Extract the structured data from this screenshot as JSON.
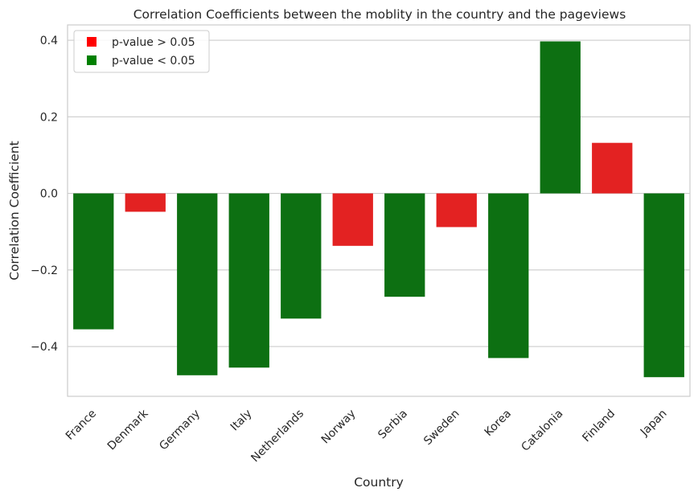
{
  "chart_data": {
    "type": "bar",
    "title": "Correlation Coefficients between the moblity in the country and the pageviews",
    "xlabel": "Country",
    "ylabel": "Correlation Coefficient",
    "ylim": [
      -0.53,
      0.44
    ],
    "yticks": [
      -0.4,
      -0.2,
      0.0,
      0.2,
      0.4
    ],
    "ytick_labels": [
      "−0.4",
      "−0.2",
      "0.0",
      "0.2",
      "0.4"
    ],
    "grid": true,
    "legend_position": "top-left",
    "categories": [
      "France",
      "Denmark",
      "Germany",
      "Italy",
      "Netherlands",
      "Norway",
      "Serbia",
      "Sweden",
      "Korea",
      "Catalonia",
      "Finland",
      "Japan"
    ],
    "values": [
      -0.355,
      -0.048,
      -0.475,
      -0.455,
      -0.327,
      -0.137,
      -0.27,
      -0.088,
      -0.43,
      0.397,
      0.132,
      -0.48
    ],
    "significance": [
      "sig",
      "nsig",
      "sig",
      "sig",
      "sig",
      "nsig",
      "sig",
      "nsig",
      "sig",
      "sig",
      "nsig",
      "sig"
    ],
    "legend": [
      {
        "label": "p-value > 0.05",
        "key": "nsig",
        "color": "#ff0000"
      },
      {
        "label": "p-value < 0.05",
        "key": "sig",
        "color": "#008000"
      }
    ],
    "colors": {
      "sig": "#0d7012",
      "nsig": "#e32222"
    }
  }
}
